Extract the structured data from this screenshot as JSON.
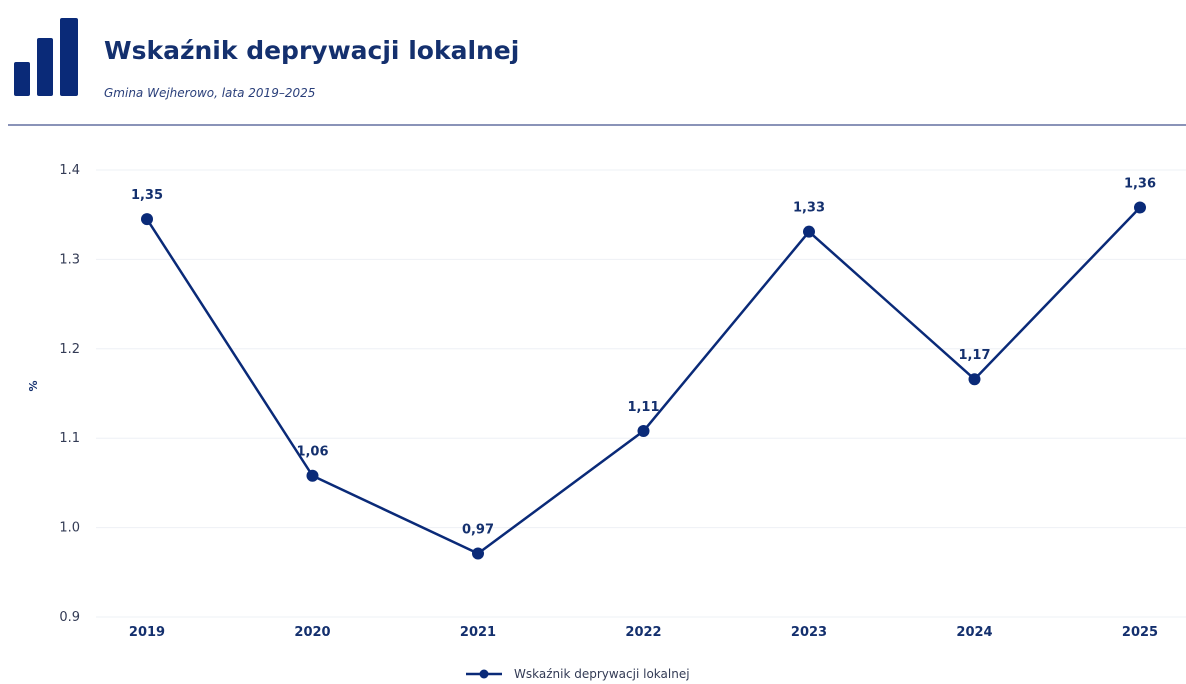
{
  "header": {
    "title": "Wskaźnik deprywacji lokalnej",
    "subtitle": "Gmina Wejherowo, lata 2019–2025",
    "icon": "bar-chart-icon"
  },
  "colors": {
    "primary": "#0a2a78",
    "rule": "#8a93b8",
    "grid": "#eef0f5"
  },
  "chart_data": {
    "type": "line",
    "title": "Wskaźnik deprywacji lokalnej",
    "subtitle": "Gmina Wejherowo, lata 2019–2025",
    "xlabel": "",
    "ylabel": "%",
    "categories": [
      "2019",
      "2020",
      "2021",
      "2022",
      "2023",
      "2024",
      "2025"
    ],
    "series": [
      {
        "name": "Wskaźnik deprywacji lokalnej",
        "values": [
          1.345,
          1.058,
          0.971,
          1.108,
          1.331,
          1.166,
          1.358
        ],
        "labels": [
          "1,35",
          "1,06",
          "0,97",
          "1,11",
          "1,33",
          "1,17",
          "1,36"
        ]
      }
    ],
    "ylim": [
      0.9,
      1.4
    ],
    "yticks": [
      "0.9",
      "1.0",
      "1.1",
      "1.2",
      "1.3",
      "1.4"
    ],
    "ytick_values": [
      0.9,
      1.0,
      1.1,
      1.2,
      1.3,
      1.4
    ],
    "grid": "horizontal",
    "legend": "bottom-center"
  }
}
